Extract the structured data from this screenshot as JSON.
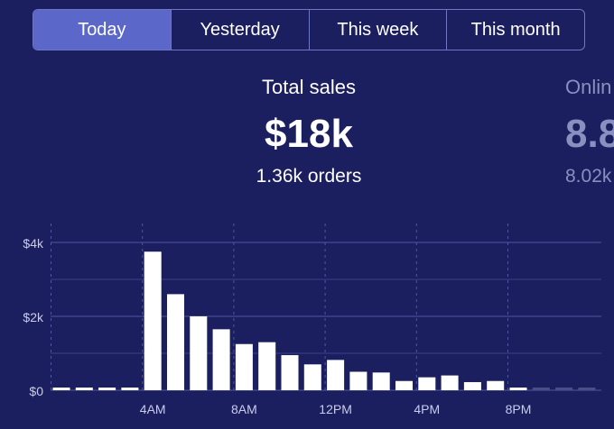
{
  "tabs": [
    {
      "label": "Today",
      "active": true
    },
    {
      "label": "Yesterday",
      "active": false
    },
    {
      "label": "This week",
      "active": false
    },
    {
      "label": "This month",
      "active": false
    }
  ],
  "metrics": {
    "total_sales": {
      "label": "Total sales",
      "value": "$18k",
      "sub": "1.36k orders"
    },
    "online": {
      "label": "Onlin",
      "value": "8.8",
      "sub": "8.02k"
    }
  },
  "colors": {
    "background": "#1c1f5f",
    "active_tab": "#5b67c9",
    "tab_border": "#6f76c4",
    "bar": "#ffffff",
    "bar_future": "#4a4f86",
    "grid": "#4f56a3"
  },
  "chart_data": {
    "type": "bar",
    "title": "",
    "xlabel": "",
    "ylabel": "",
    "ylim": [
      0,
      4000
    ],
    "y_ticks": [
      "$0",
      "$2k",
      "$4k"
    ],
    "x_ticks": [
      {
        "hour": 4,
        "label": "4AM"
      },
      {
        "hour": 8,
        "label": "8AM"
      },
      {
        "hour": 12,
        "label": "12PM"
      },
      {
        "hour": 16,
        "label": "4PM"
      },
      {
        "hour": 20,
        "label": "8PM"
      }
    ],
    "hours": [
      0,
      1,
      2,
      3,
      4,
      5,
      6,
      7,
      8,
      9,
      10,
      11,
      12,
      13,
      14,
      15,
      16,
      17,
      18,
      19,
      20,
      21,
      22,
      23
    ],
    "values": [
      50,
      50,
      50,
      50,
      3750,
      2600,
      2000,
      1650,
      1250,
      1300,
      950,
      700,
      820,
      500,
      480,
      250,
      350,
      400,
      220,
      250,
      50,
      50,
      50,
      50
    ],
    "future_from_hour": 21,
    "grid": true
  }
}
